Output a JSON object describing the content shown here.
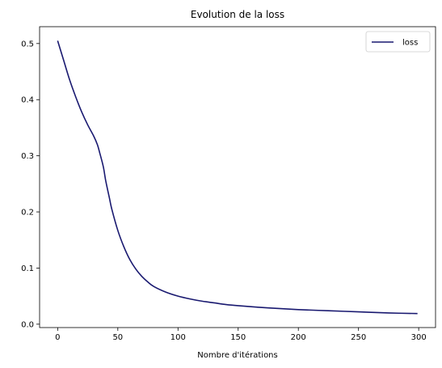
{
  "chart_data": {
    "type": "line",
    "title": "Evolution de la loss",
    "xlabel": "Nombre d'itérations",
    "ylabel": "",
    "xlim": [
      -15,
      314
    ],
    "ylim": [
      -0.006,
      0.53
    ],
    "xticks": [
      0,
      50,
      100,
      150,
      200,
      250,
      300
    ],
    "yticks": [
      0.0,
      0.1,
      0.2,
      0.3,
      0.4,
      0.5
    ],
    "grid": false,
    "legend_position": "top-right",
    "colors": {
      "line": "#191970"
    },
    "series": [
      {
        "name": "loss",
        "x": [
          0,
          5,
          10,
          15,
          20,
          25,
          30,
          33,
          35,
          38,
          40,
          43,
          45,
          50,
          55,
          60,
          65,
          70,
          75,
          80,
          90,
          100,
          110,
          120,
          130,
          140,
          150,
          175,
          200,
          225,
          250,
          275,
          299
        ],
        "values": [
          0.505,
          0.47,
          0.435,
          0.405,
          0.378,
          0.355,
          0.335,
          0.32,
          0.305,
          0.28,
          0.255,
          0.225,
          0.205,
          0.167,
          0.138,
          0.115,
          0.098,
          0.085,
          0.075,
          0.067,
          0.057,
          0.05,
          0.045,
          0.041,
          0.038,
          0.035,
          0.033,
          0.029,
          0.026,
          0.024,
          0.022,
          0.02,
          0.019
        ]
      }
    ]
  }
}
